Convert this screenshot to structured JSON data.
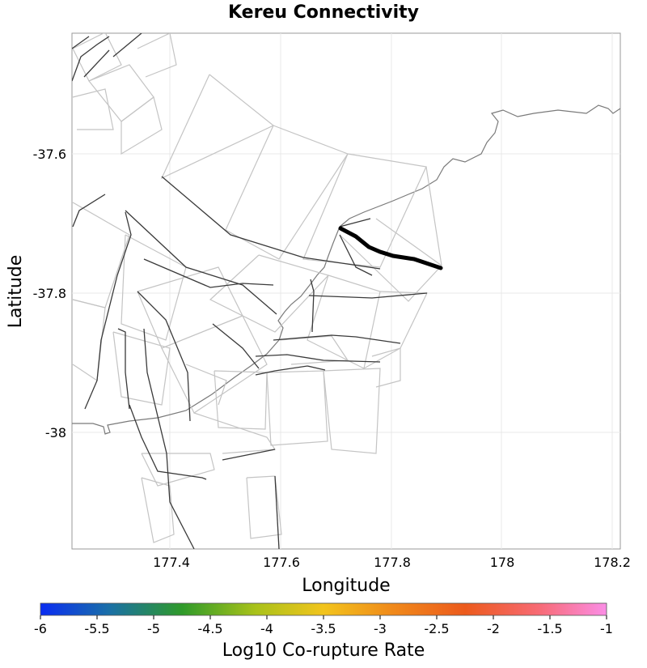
{
  "title": "Kereu Connectivity",
  "x_axis": {
    "label": "Longitude",
    "ticks": [
      "177.4",
      "177.6",
      "177.8",
      "178",
      "178.2"
    ]
  },
  "y_axis": {
    "label": "Latitude",
    "ticks": [
      "-37.6",
      "-37.8",
      "-38"
    ]
  },
  "colorbar": {
    "label": "Log10 Co-rupture Rate",
    "ticks": [
      "-6",
      "-5.5",
      "-5",
      "-4.5",
      "-4",
      "-3.5",
      "-3",
      "-2.5",
      "-2",
      "-1.5",
      "-1"
    ],
    "colors": [
      "#0a2cf2",
      "#1a6fa8",
      "#2f9a2a",
      "#a9c21a",
      "#f2c41c",
      "#f08a1a",
      "#ec5a1c",
      "#f76a74",
      "#fb8ee6"
    ]
  },
  "map_data": {
    "lon_range": [
      177.22,
      178.21
    ],
    "lat_range": [
      -37.41,
      -38.16
    ],
    "grid": true,
    "highlighted_fault": "Kereu"
  }
}
